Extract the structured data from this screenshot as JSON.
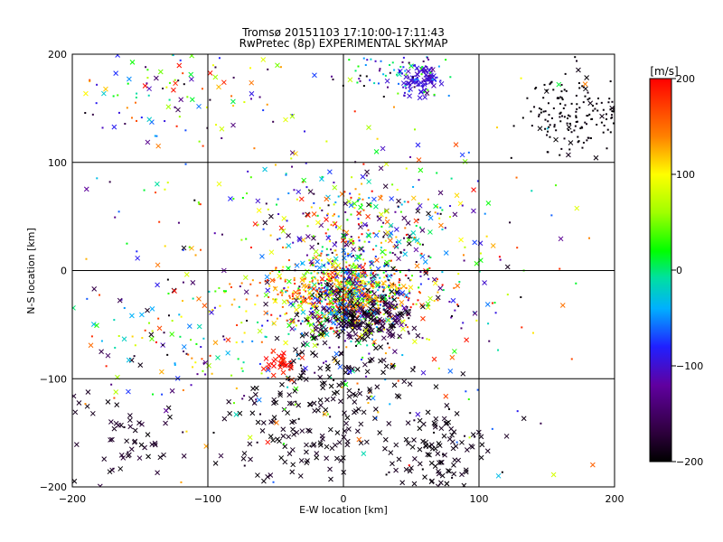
{
  "chart_data": {
    "type": "scatter",
    "title": "Tromsø 20151103 17:10:00-17:11:43",
    "subtitle": "RwPretec (8p) EXPERIMENTAL SKYMAP",
    "xlabel": "E-W location [km]",
    "ylabel": "N-S location [km]",
    "xlim": [
      -200,
      200
    ],
    "ylim": [
      -200,
      200
    ],
    "xticks": [
      "-200",
      "-100",
      "0",
      "100",
      "200"
    ],
    "yticks": [
      "-200",
      "-100",
      "0",
      "100",
      "200"
    ],
    "grid": true,
    "colorbar": {
      "label": "[m/s]",
      "range": [
        -200,
        200
      ],
      "ticks": [
        "200",
        "100",
        "0",
        "-100",
        "-200"
      ]
    },
    "marker_types": [
      "x",
      "dot"
    ],
    "clusters": [
      {
        "cx": 5,
        "cy": -25,
        "sx": 22,
        "sy": 18,
        "n": 700,
        "vel": [
          -200,
          200
        ],
        "marker": "mixed"
      },
      {
        "cx": -10,
        "cy": -20,
        "sx": 35,
        "sy": 12,
        "n": 220,
        "vel": [
          100,
          200
        ],
        "marker": "dot"
      },
      {
        "cx": 15,
        "cy": -45,
        "sx": 18,
        "sy": 12,
        "n": 160,
        "vel": [
          -200,
          -150
        ],
        "marker": "x"
      },
      {
        "cx": 20,
        "cy": 40,
        "sx": 30,
        "sy": 25,
        "n": 180,
        "vel": [
          -200,
          200
        ],
        "marker": "mixed"
      },
      {
        "cx": 10,
        "cy": 0,
        "sx": 55,
        "sy": 55,
        "n": 320,
        "vel": [
          -200,
          200
        ],
        "marker": "mixed"
      },
      {
        "cx": 0,
        "cy": -100,
        "sx": 25,
        "sy": 35,
        "n": 140,
        "vel": [
          -200,
          -180
        ],
        "marker": "x"
      },
      {
        "cx": 70,
        "cy": -165,
        "sx": 18,
        "sy": 22,
        "n": 110,
        "vel": [
          -200,
          -180
        ],
        "marker": "x"
      },
      {
        "cx": -40,
        "cy": -150,
        "sx": 22,
        "sy": 25,
        "n": 90,
        "vel": [
          -200,
          -180
        ],
        "marker": "x"
      },
      {
        "cx": -160,
        "cy": -160,
        "sx": 25,
        "sy": 25,
        "n": 70,
        "vel": [
          -200,
          -170
        ],
        "marker": "x"
      },
      {
        "cx": 170,
        "cy": 145,
        "sx": 22,
        "sy": 18,
        "n": 170,
        "vel": [
          -200,
          -190
        ],
        "marker": "dot"
      },
      {
        "cx": 58,
        "cy": 175,
        "sx": 8,
        "sy": 7,
        "n": 90,
        "vel": [
          -110,
          -90
        ],
        "marker": "mixed"
      },
      {
        "cx": 40,
        "cy": 185,
        "sx": 22,
        "sy": 12,
        "n": 80,
        "vel": [
          -200,
          50
        ],
        "marker": "dot"
      },
      {
        "cx": -130,
        "cy": 165,
        "sx": 45,
        "sy": 25,
        "n": 110,
        "vel": [
          -200,
          200
        ],
        "marker": "mixed"
      },
      {
        "cx": -130,
        "cy": -60,
        "sx": 40,
        "sy": 30,
        "n": 110,
        "vel": [
          -200,
          200
        ],
        "marker": "mixed"
      },
      {
        "cx": -45,
        "cy": -85,
        "sx": 6,
        "sy": 6,
        "n": 30,
        "vel": [
          180,
          200
        ],
        "marker": "x"
      },
      {
        "cx": 0,
        "cy": 0,
        "sx": 110,
        "sy": 110,
        "n": 300,
        "vel": [
          -200,
          200
        ],
        "marker": "mixed"
      }
    ]
  }
}
